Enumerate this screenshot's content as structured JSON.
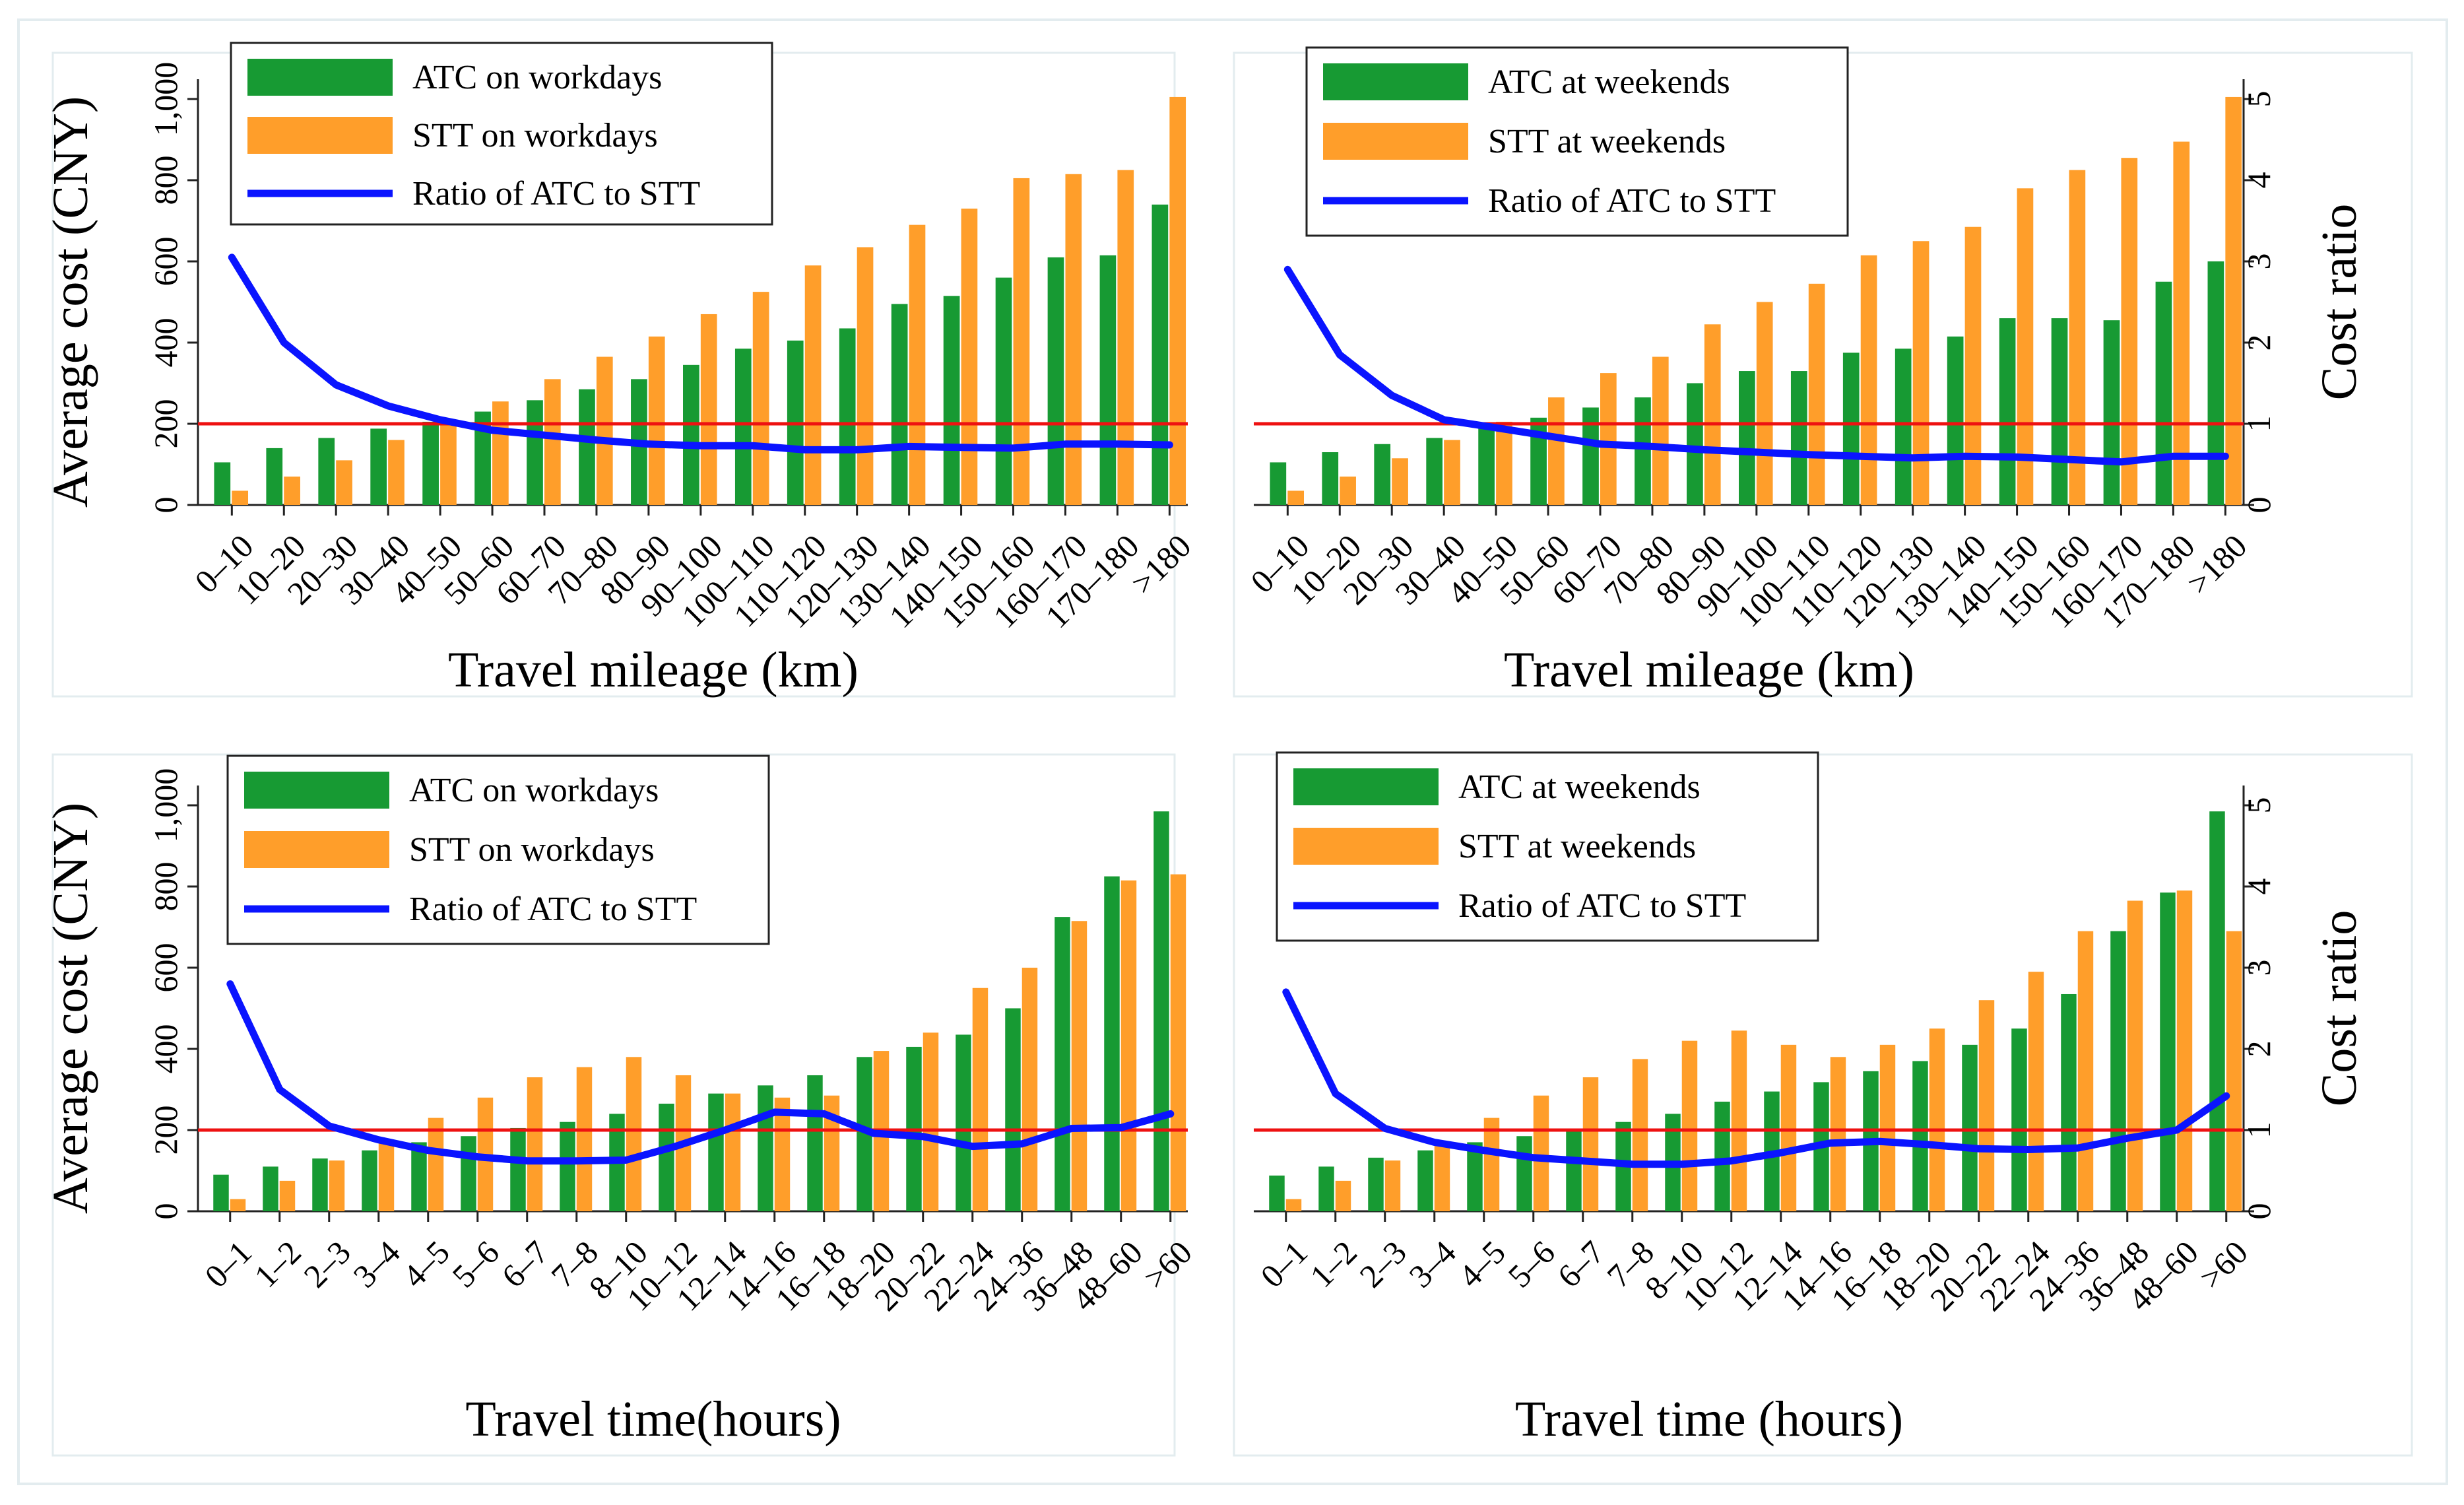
{
  "colors": {
    "atc": "#179a33",
    "stt": "#ff9e2a",
    "ratio": "#0a14ff",
    "reference": "#ee1111",
    "frame": "#222222",
    "panel_border": "#e3ecef"
  },
  "chart_data": [
    {
      "type": "bar",
      "panel": "top-left",
      "xlabel": "Travel mileage (km)",
      "ylabel": "Average cost (CNY)",
      "y2label": "",
      "ylim": [
        0,
        1000
      ],
      "y_ticks": [
        "0",
        "200",
        "400",
        "600",
        "800",
        "1,000"
      ],
      "y2lim": [
        0,
        5
      ],
      "y2_ticks": [],
      "reference_line_value": 200,
      "legend_position": "top-left",
      "categories": [
        "0–10",
        "10–20",
        "20–30",
        "30–40",
        "40–50",
        "50–60",
        "60–70",
        "70–80",
        "80–90",
        "90–100",
        "100–110",
        "110–120",
        "120–130",
        "130–140",
        "140–150",
        "150–160",
        "160–170",
        "170–180",
        ">180"
      ],
      "series": [
        {
          "name": "ATC on workdays",
          "kind": "bar",
          "axis": "left",
          "values": [
            105,
            140,
            165,
            188,
            205,
            230,
            258,
            285,
            310,
            345,
            385,
            405,
            435,
            495,
            515,
            560,
            610,
            615,
            740
          ]
        },
        {
          "name": "STT on workdays",
          "kind": "bar",
          "axis": "left",
          "values": [
            35,
            70,
            110,
            160,
            200,
            255,
            310,
            365,
            415,
            470,
            525,
            590,
            635,
            690,
            730,
            805,
            815,
            825,
            1005
          ]
        },
        {
          "name": "Ratio of ATC to STT",
          "kind": "line",
          "axis": "right",
          "values": [
            3.05,
            2.0,
            1.48,
            1.22,
            1.05,
            0.92,
            0.86,
            0.8,
            0.75,
            0.73,
            0.73,
            0.68,
            0.68,
            0.72,
            0.71,
            0.7,
            0.75,
            0.75,
            0.74
          ]
        }
      ]
    },
    {
      "type": "bar",
      "panel": "top-right",
      "xlabel": "Travel mileage (km)",
      "ylabel": "",
      "y2label": "Cost ratio",
      "ylim": [
        0,
        1000
      ],
      "y_ticks": [],
      "y2lim": [
        0,
        5
      ],
      "y2_ticks": [
        "0",
        "1",
        "2",
        "3",
        "4",
        "5"
      ],
      "reference_line_value": 200,
      "legend_position": "top-center",
      "categories": [
        "0–10",
        "10–20",
        "20–30",
        "30–40",
        "40–50",
        "50–60",
        "60–70",
        "70–80",
        "80–90",
        "90–100",
        "100–110",
        "110–120",
        "120–130",
        "130–140",
        "140–150",
        "150–160",
        "160–170",
        "170–180",
        ">180"
      ],
      "series": [
        {
          "name": "ATC at weekends",
          "kind": "bar",
          "axis": "left",
          "values": [
            105,
            130,
            150,
            165,
            195,
            215,
            240,
            265,
            300,
            330,
            330,
            375,
            385,
            415,
            460,
            460,
            455,
            550,
            600
          ]
        },
        {
          "name": "STT at weekends",
          "kind": "bar",
          "axis": "left",
          "values": [
            35,
            70,
            115,
            160,
            205,
            265,
            325,
            365,
            445,
            500,
            545,
            615,
            650,
            685,
            780,
            825,
            855,
            895,
            1005
          ]
        },
        {
          "name": "Ratio of ATC to STT",
          "kind": "line",
          "axis": "right",
          "values": [
            2.9,
            1.85,
            1.35,
            1.05,
            0.95,
            0.85,
            0.75,
            0.72,
            0.68,
            0.65,
            0.62,
            0.6,
            0.58,
            0.6,
            0.59,
            0.56,
            0.53,
            0.6,
            0.6
          ]
        }
      ]
    },
    {
      "type": "bar",
      "panel": "bottom-left",
      "xlabel": "Travel time(hours)",
      "ylabel": "Average cost (CNY)",
      "y2label": "",
      "ylim": [
        0,
        1000
      ],
      "y_ticks": [
        "0",
        "200",
        "400",
        "600",
        "800",
        "1,000"
      ],
      "y2lim": [
        0,
        5
      ],
      "y2_ticks": [],
      "reference_line_value": 200,
      "legend_position": "top-left",
      "categories": [
        "0–1",
        "1–2",
        "2–3",
        "3–4",
        "4–5",
        "5–6",
        "6–7",
        "7–8",
        "8–10",
        "10–12",
        "12–14",
        "14–16",
        "16–18",
        "18–20",
        "20–22",
        "22–24",
        "24–36",
        "36–48",
        "48–60",
        ">60"
      ],
      "series": [
        {
          "name": "ATC on workdays",
          "kind": "bar",
          "axis": "left",
          "values": [
            90,
            110,
            130,
            150,
            170,
            185,
            205,
            220,
            240,
            265,
            290,
            310,
            335,
            380,
            405,
            435,
            500,
            725,
            825,
            985
          ]
        },
        {
          "name": "STT on workdays",
          "kind": "bar",
          "axis": "left",
          "values": [
            30,
            75,
            125,
            170,
            230,
            280,
            330,
            355,
            380,
            335,
            290,
            280,
            285,
            395,
            440,
            550,
            600,
            715,
            815,
            830
          ]
        },
        {
          "name": "Ratio of ATC to STT",
          "kind": "line",
          "axis": "right",
          "values": [
            2.8,
            1.5,
            1.05,
            0.88,
            0.75,
            0.67,
            0.62,
            0.62,
            0.63,
            0.8,
            1.0,
            1.22,
            1.2,
            0.96,
            0.92,
            0.8,
            0.83,
            1.02,
            1.03,
            1.2
          ]
        }
      ]
    },
    {
      "type": "bar",
      "panel": "bottom-right",
      "xlabel": "Travel time (hours)",
      "ylabel": "",
      "y2label": "Cost ratio",
      "ylim": [
        0,
        1000
      ],
      "y_ticks": [],
      "y2lim": [
        0,
        5
      ],
      "y2_ticks": [
        "0",
        "1",
        "2",
        "3",
        "4",
        "5"
      ],
      "reference_line_value": 200,
      "legend_position": "top-left",
      "categories": [
        "0–1",
        "1–2",
        "2–3",
        "3–4",
        "4–5",
        "5–6",
        "6–7",
        "7–8",
        "8–10",
        "10–12",
        "12–14",
        "14–16",
        "16–18",
        "18–20",
        "20–22",
        "22–24",
        "24–36",
        "36–48",
        "48–60",
        ">60"
      ],
      "series": [
        {
          "name": "ATC at weekends",
          "kind": "bar",
          "axis": "left",
          "values": [
            88,
            110,
            132,
            150,
            170,
            185,
            200,
            220,
            240,
            270,
            295,
            318,
            345,
            370,
            410,
            450,
            535,
            690,
            785,
            985
          ]
        },
        {
          "name": "STT at weekends",
          "kind": "bar",
          "axis": "left",
          "values": [
            30,
            75,
            125,
            170,
            230,
            285,
            330,
            375,
            420,
            445,
            410,
            380,
            410,
            450,
            520,
            590,
            690,
            765,
            790,
            690
          ]
        },
        {
          "name": "Ratio of ATC to STT",
          "kind": "line",
          "axis": "right",
          "values": [
            2.7,
            1.45,
            1.02,
            0.85,
            0.75,
            0.66,
            0.62,
            0.58,
            0.58,
            0.62,
            0.72,
            0.84,
            0.86,
            0.82,
            0.77,
            0.76,
            0.78,
            0.9,
            1.0,
            1.42
          ]
        }
      ]
    }
  ]
}
